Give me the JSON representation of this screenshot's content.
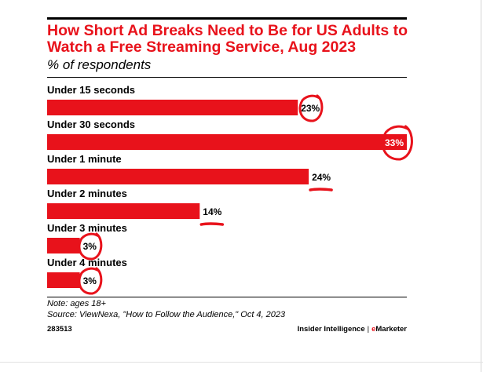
{
  "title": "How Short Ad Breaks Need to Be for US Adults to Watch a Free Streaming Service, Aug 2023",
  "subtitle": "% of respondents",
  "chart_data": {
    "type": "bar",
    "orientation": "horizontal",
    "categories": [
      "Under 15 seconds",
      "Under 30 seconds",
      "Under 1 minute",
      "Under 2 minutes",
      "Under 3 minutes",
      "Under 4 minutes"
    ],
    "values": [
      23,
      33,
      24,
      14,
      3,
      3
    ],
    "value_labels": [
      "23%",
      "33%",
      "24%",
      "14%",
      "3%",
      "3%"
    ],
    "unit": "%",
    "xlim": [
      0,
      33
    ],
    "grid": false,
    "legend": "none",
    "bar_color": "#e8121b",
    "annotation_color": "#e8121b"
  },
  "footer": {
    "note": "Note: ages 18+",
    "source": "Source: ViewNexa, \"How to Follow the Audience,\" Oct 4, 2023",
    "chart_id": "283513",
    "brand_left": "Insider Intelligence",
    "brand_sep": "|",
    "brand_e": "e",
    "brand_right": "Marketer"
  }
}
